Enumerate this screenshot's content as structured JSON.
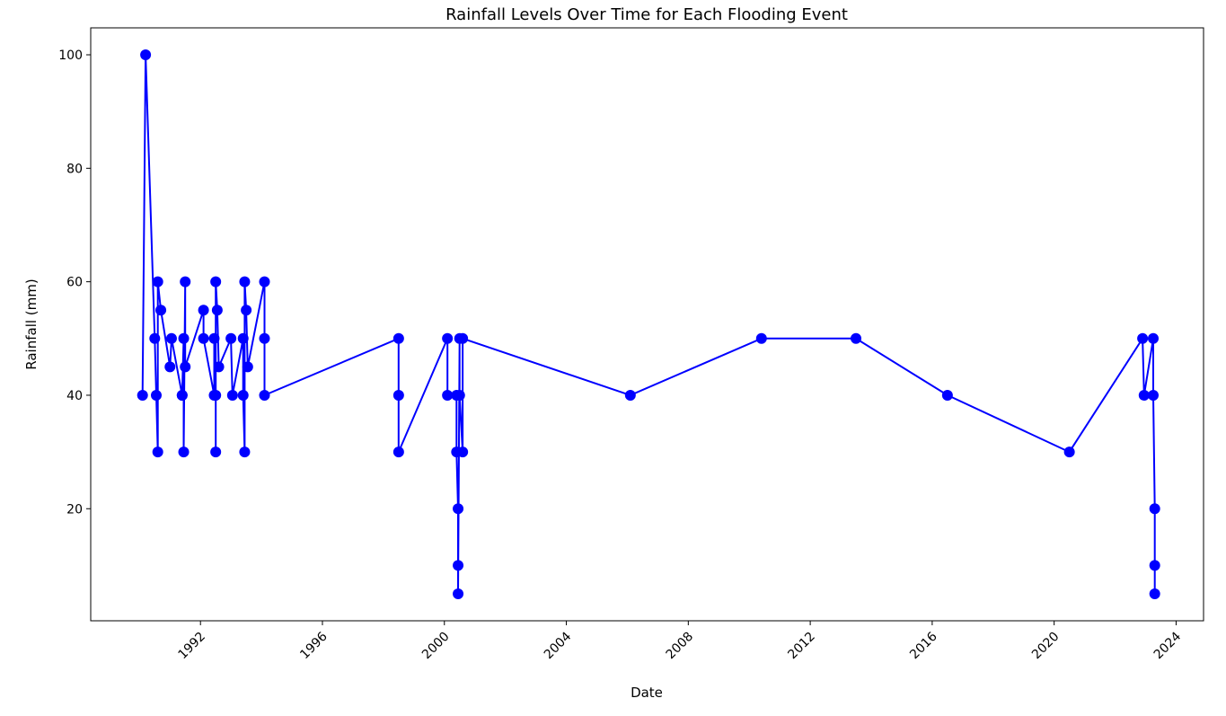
{
  "chart_data": {
    "type": "line",
    "title": "Rainfall Levels Over Time for Each Flooding Event",
    "xlabel": "Date",
    "ylabel": "Rainfall (mm)",
    "x_ticks": [
      "1992",
      "1996",
      "2000",
      "2004",
      "2008",
      "2012",
      "2016",
      "2020",
      "2024"
    ],
    "y_ticks": [
      20,
      40,
      60,
      80,
      100
    ],
    "xlim": [
      1988.4,
      2024.9
    ],
    "ylim": [
      0.25,
      104.75
    ],
    "grid": false,
    "legend": "none",
    "color": "#0000ff",
    "marker": "circle",
    "series": [
      {
        "x": [
          1990.1,
          1990.2,
          1990.5,
          1990.55,
          1990.6,
          1990.6,
          1990.7,
          1991.0,
          1991.05,
          1991.4,
          1991.4,
          1991.45,
          1991.45,
          1991.5,
          1991.5,
          1992.1,
          1992.1,
          1992.45,
          1992.45,
          1992.5,
          1992.5,
          1992.5,
          1992.55,
          1992.6,
          1993.0,
          1993.05,
          1993.4,
          1993.4,
          1993.45,
          1993.45,
          1993.5,
          1993.55,
          1994.1,
          1994.1,
          1994.1,
          1998.5,
          1998.5,
          1998.5,
          2000.1,
          2000.1,
          2000.4,
          2000.4,
          2000.45,
          2000.45,
          2000.45,
          2000.5,
          2000.5,
          2000.6,
          2000.6,
          2006.1,
          2010.4,
          2013.5,
          2016.5,
          2020.5,
          2022.9,
          2022.95,
          2023.25,
          2023.25,
          2023.3,
          2023.3,
          2023.3
        ],
        "y": [
          40,
          100,
          50,
          40,
          30,
          60,
          55,
          45,
          50,
          40,
          40,
          50,
          30,
          60,
          45,
          55,
          50,
          40,
          50,
          40,
          30,
          60,
          55,
          45,
          50,
          40,
          50,
          40,
          30,
          60,
          55,
          45,
          60,
          50,
          40,
          50,
          40,
          30,
          50,
          40,
          40,
          30,
          20,
          10,
          5,
          50,
          40,
          30,
          50,
          40,
          50,
          50,
          40,
          30,
          50,
          40,
          50,
          40,
          20,
          10,
          5
        ]
      }
    ]
  }
}
